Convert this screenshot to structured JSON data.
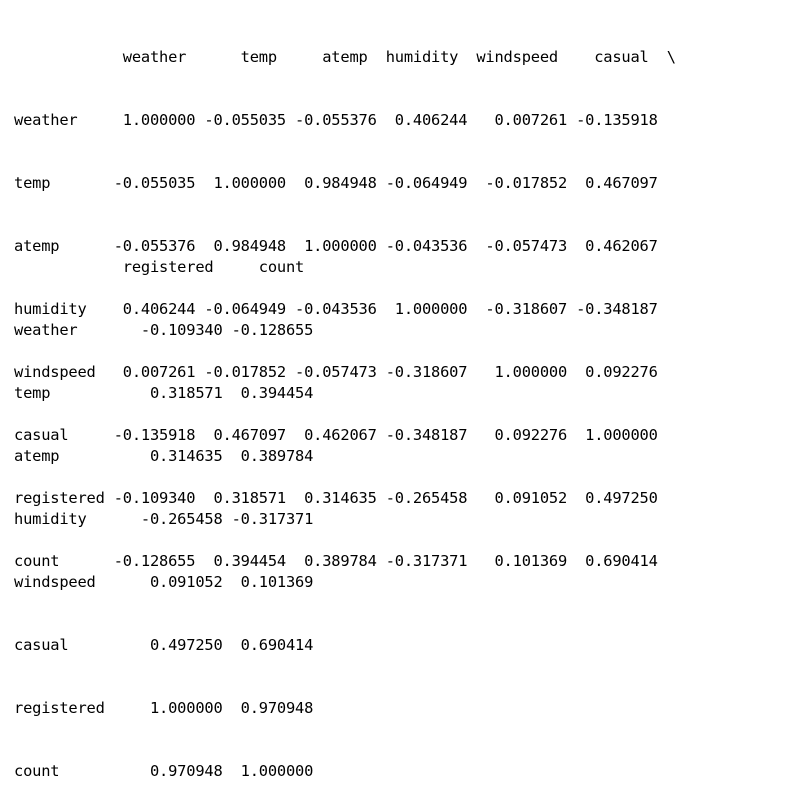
{
  "output": {
    "block1": {
      "header": "            weather      temp     atemp  humidity  windspeed    casual  \\",
      "rows": [
        "weather     1.000000 -0.055035 -0.055376  0.406244   0.007261 -0.135918",
        "temp       -0.055035  1.000000  0.984948 -0.064949  -0.017852  0.467097",
        "atemp      -0.055376  0.984948  1.000000 -0.043536  -0.057473  0.462067",
        "humidity    0.406244 -0.064949 -0.043536  1.000000  -0.318607 -0.348187",
        "windspeed   0.007261 -0.017852 -0.057473 -0.318607   1.000000  0.092276",
        "casual     -0.135918  0.467097  0.462067 -0.348187   0.092276  1.000000",
        "registered -0.109340  0.318571  0.314635 -0.265458   0.091052  0.497250",
        "count      -0.128655  0.394454  0.389784 -0.317371   0.101369  0.690414"
      ]
    },
    "block2": {
      "header": "            registered     count",
      "rows": [
        "weather       -0.109340 -0.128655",
        "temp           0.318571  0.394454",
        "atemp          0.314635  0.389784",
        "humidity      -0.265458 -0.317371",
        "windspeed      0.091052  0.101369",
        "casual         0.497250  0.690414",
        "registered     1.000000  0.970948",
        "count          0.970948  1.000000"
      ]
    }
  }
}
